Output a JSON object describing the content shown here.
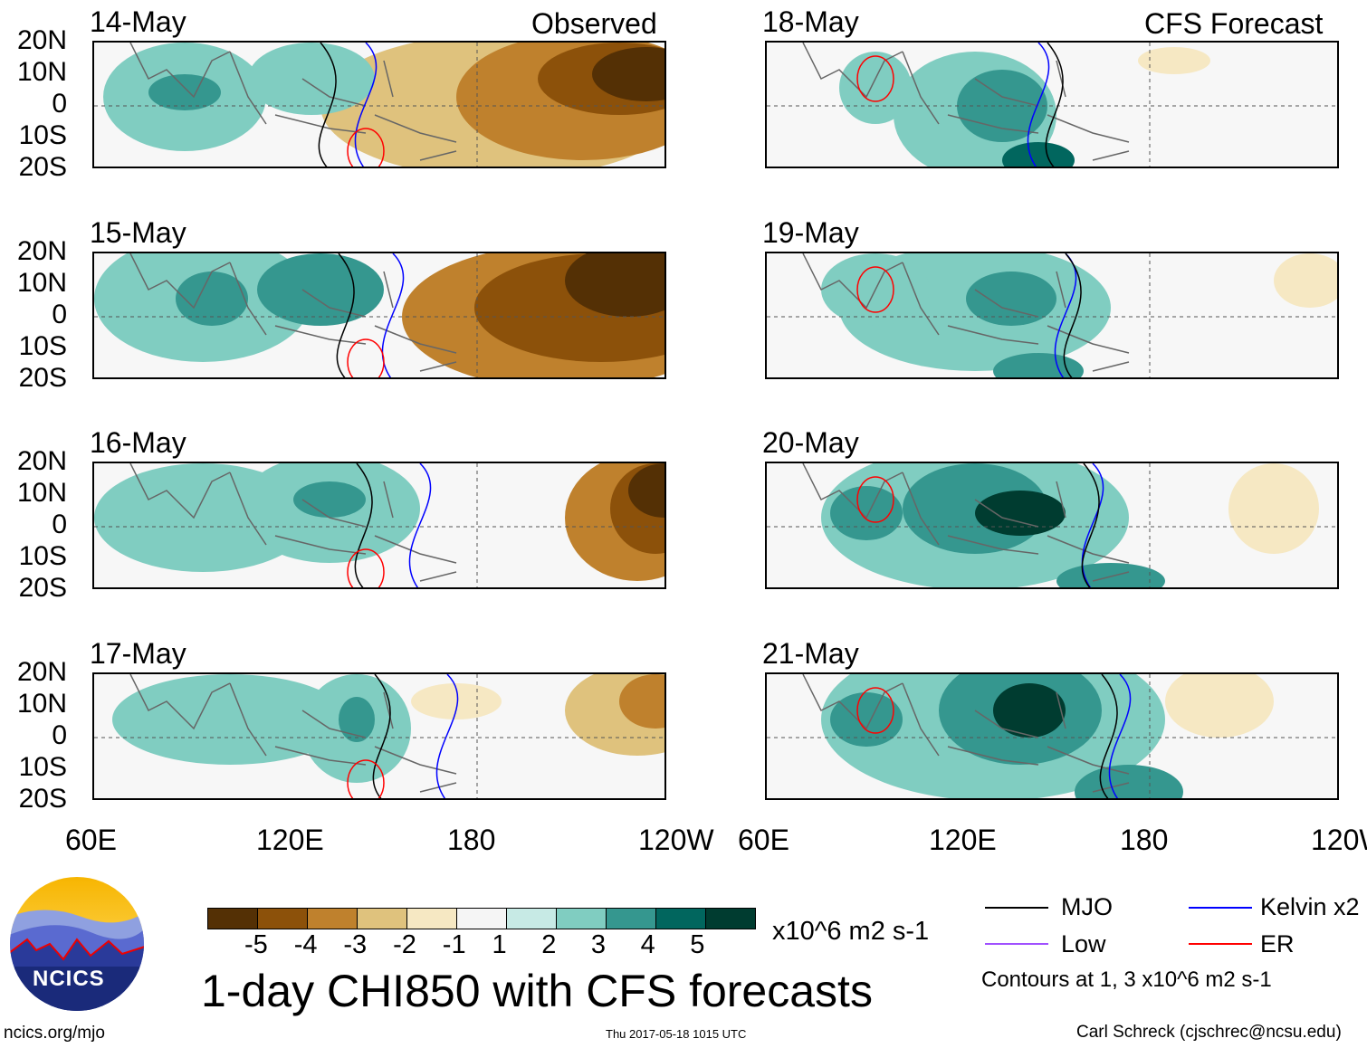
{
  "figure_title": "1-day CHI850 with CFS forecasts",
  "left_column_label": "Observed",
  "right_column_label": "CFS Forecast",
  "left_panels": [
    "14-May",
    "15-May",
    "16-May",
    "17-May"
  ],
  "right_panels": [
    "18-May",
    "19-May",
    "20-May",
    "21-May"
  ],
  "lat_labels": [
    "20N",
    "10N",
    "0",
    "10S",
    "20S"
  ],
  "lon_labels": [
    "60E",
    "120E",
    "180",
    "120W"
  ],
  "colorbar": {
    "colors": [
      "#543005",
      "#8c510a",
      "#bf812d",
      "#dfc27d",
      "#f6e8c3",
      "#f5f5f5",
      "#c7eae5",
      "#80cdc1",
      "#35978f",
      "#01665e",
      "#003c30"
    ],
    "ticks": [
      "-5",
      "-4",
      "-3",
      "-2",
      "-1",
      "1",
      "2",
      "3",
      "4",
      "5"
    ],
    "units": "x10^6 m2 s-1"
  },
  "legend": {
    "items": [
      {
        "label": "MJO",
        "color": "#000000"
      },
      {
        "label": "Kelvin x2",
        "color": "#0000ff"
      },
      {
        "label": "Low",
        "color": "#a050ff"
      },
      {
        "label": "ER",
        "color": "#ff0000"
      }
    ],
    "note": "Contours at 1, 3 x10^6 m2 s-1"
  },
  "logo_text": "NCICS",
  "url": "ncics.org/mjo",
  "timestamp": "Thu 2017-05-18 1015 UTC",
  "credit": "Carl Schreck (cjschrec@ncsu.edu)"
}
